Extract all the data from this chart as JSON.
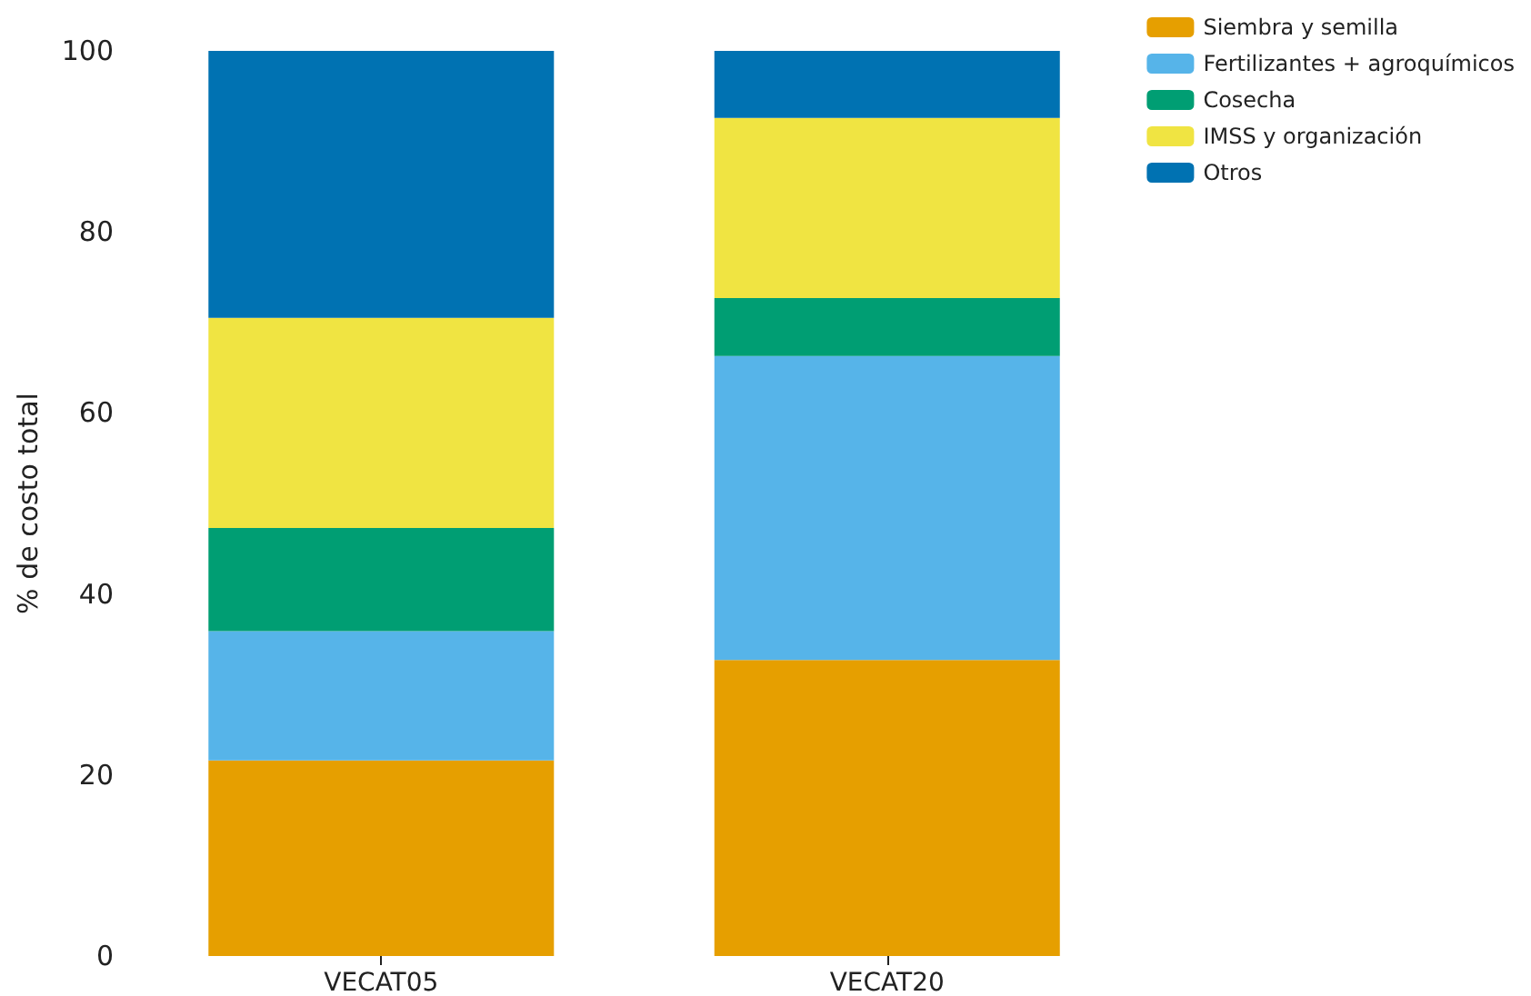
{
  "chart_data": {
    "type": "bar",
    "stacked": true,
    "ylabel": "% de costo total",
    "categories": [
      "VECAT05",
      "VECAT20"
    ],
    "series": [
      {
        "name": "Siembra y semilla",
        "color": "#e69f00",
        "values": [
          21.6,
          32.7
        ]
      },
      {
        "name": "Fertilizantes + agroquímicos",
        "color": "#56b4e9",
        "values": [
          14.3,
          33.6
        ]
      },
      {
        "name": "Cosecha",
        "color": "#009e73",
        "values": [
          11.4,
          6.4
        ]
      },
      {
        "name": "IMSS y organización",
        "color": "#f0e442",
        "values": [
          23.2,
          19.9
        ]
      },
      {
        "name": "Otros",
        "color": "#0072b2",
        "values": [
          29.5,
          7.4
        ]
      }
    ],
    "ylim": [
      0,
      100
    ],
    "yticks": [
      0,
      20,
      40,
      60,
      80,
      100
    ],
    "grid": false,
    "legend": "top right"
  }
}
